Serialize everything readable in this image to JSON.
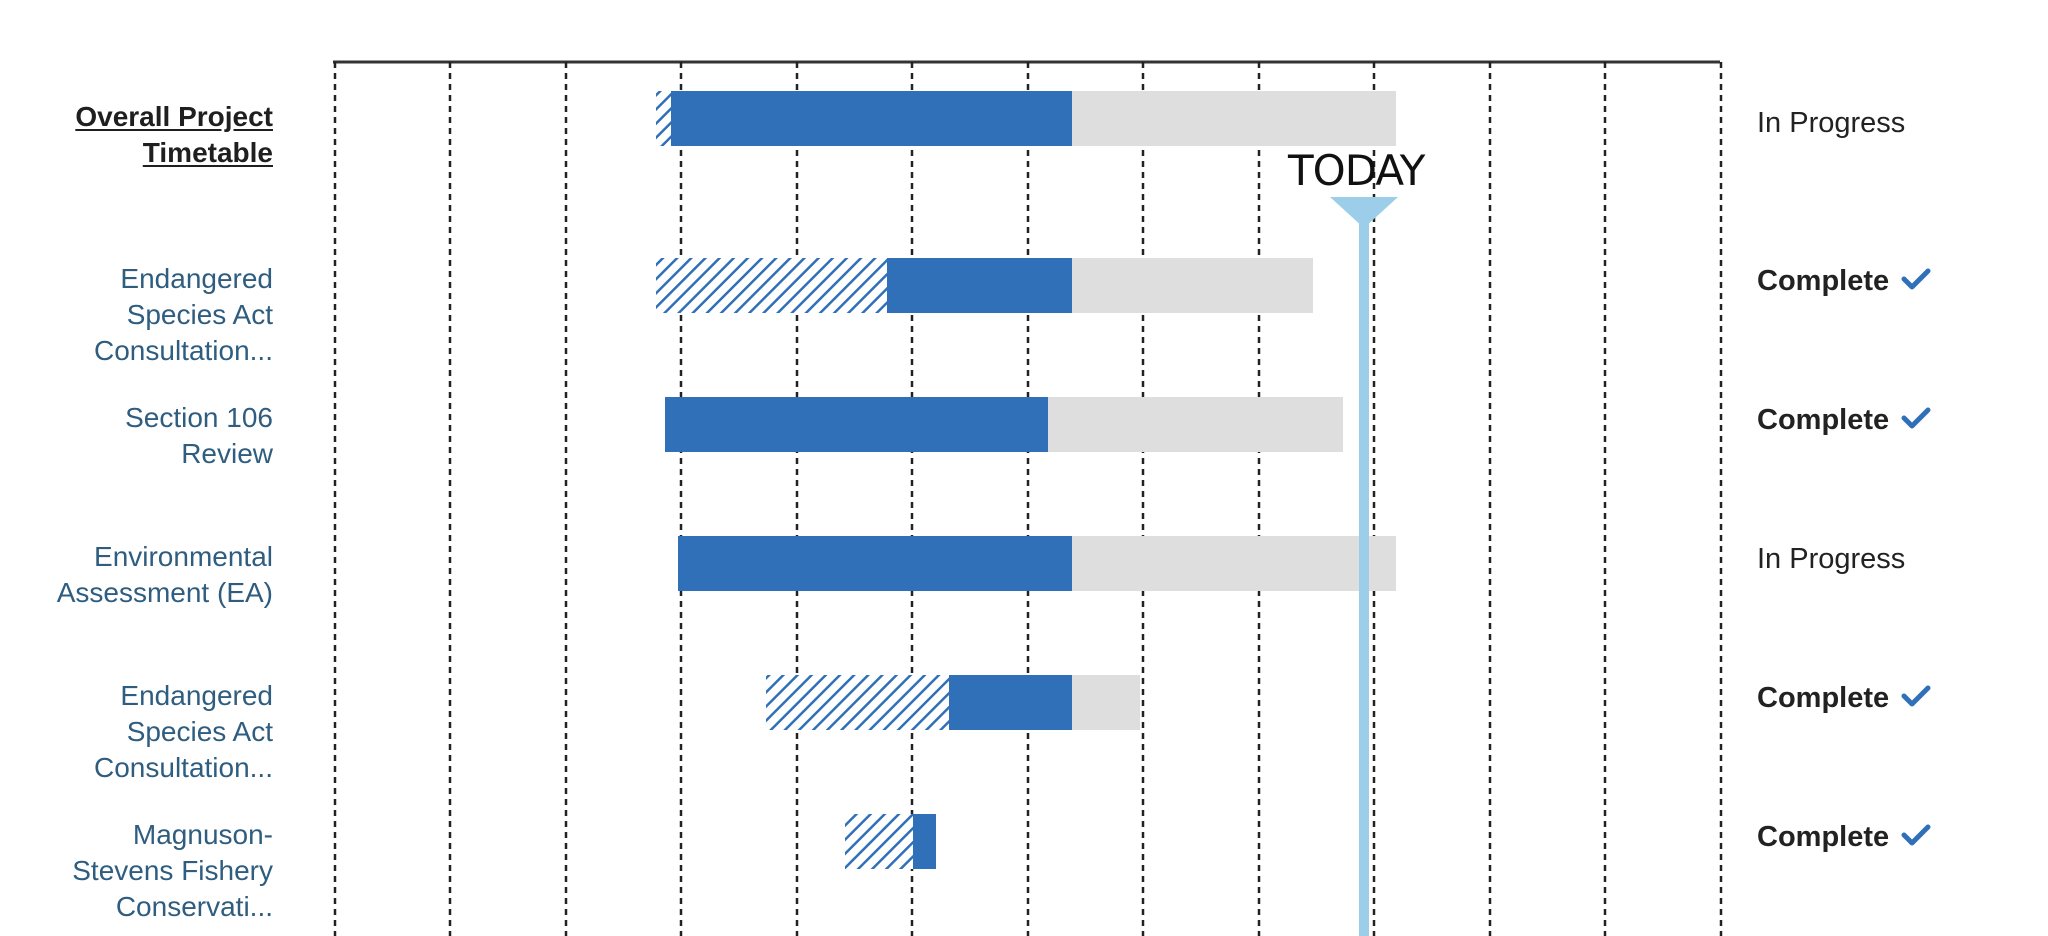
{
  "rows": [
    {
      "label": "Overall Project\nTimetable",
      "status": "In Progress",
      "complete": false,
      "overall": true
    },
    {
      "label": "Endangered\nSpecies Act\nConsultation...",
      "status": "Complete",
      "complete": true,
      "overall": false
    },
    {
      "label": "Section 106\nReview",
      "status": "Complete",
      "complete": true,
      "overall": false
    },
    {
      "label": "Environmental\nAssessment (EA)",
      "status": "In Progress",
      "complete": false,
      "overall": false
    },
    {
      "label": "Endangered\nSpecies Act\nConsultation...",
      "status": "Complete",
      "complete": true,
      "overall": false
    },
    {
      "label": "Magnuson-\nStevens Fishery\nConservati...",
      "status": "Complete",
      "complete": true,
      "overall": false
    }
  ],
  "today_label": "TODAY",
  "status_icons": {
    "complete": "checkmark-icon"
  },
  "colors": {
    "actual": "#3070b8",
    "planned": "#dedede",
    "hatch": "#3070b8",
    "today": "#9ccde9",
    "grid": "#222222",
    "label": "#2f5d80"
  }
}
